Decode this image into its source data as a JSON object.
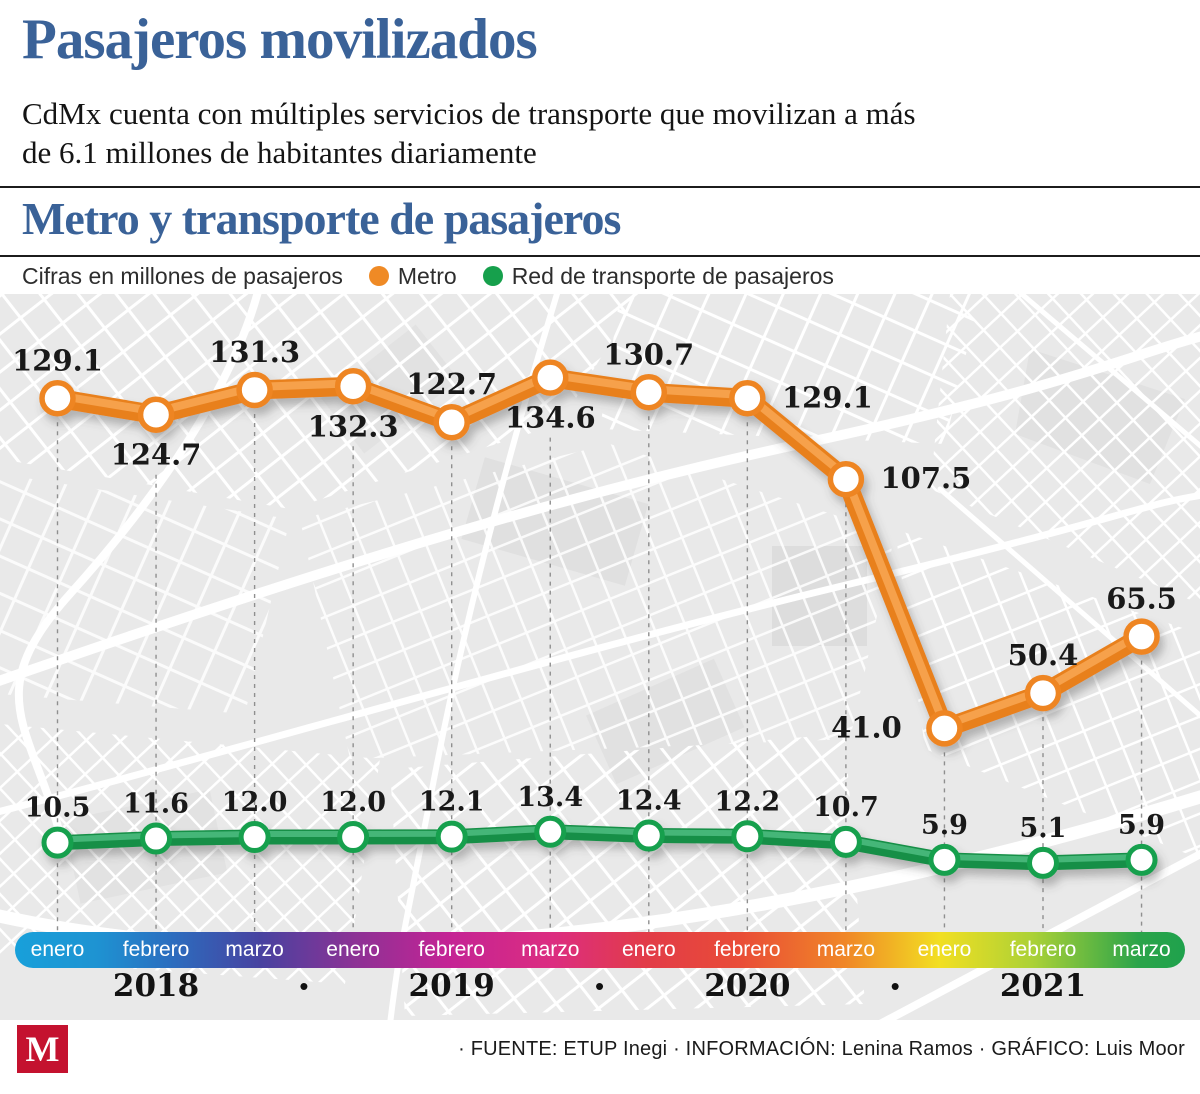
{
  "header": {
    "title": "Pasajeros movilizados",
    "subtitle_lines": [
      "CdMx cuenta con múltiples servicios de transporte que movilizan a más",
      "de 6.1 millones de habitantes diariamente"
    ]
  },
  "section": {
    "title": "Metro y transporte de pasajeros"
  },
  "legend": {
    "note": "Cifras en millones de pasajeros",
    "items": [
      {
        "label": "Metro",
        "color": "#ef8a25"
      },
      {
        "label": "Red de transporte de pasajeros",
        "color": "#16a04c"
      }
    ]
  },
  "chart_data": {
    "type": "line",
    "title": "Metro y transporte de pasajeros",
    "units_note": "Cifras en millones de pasajeros",
    "x": [
      "enero",
      "febrero",
      "marzo",
      "enero",
      "febrero",
      "marzo",
      "enero",
      "febrero",
      "marzo",
      "enero",
      "febrero",
      "marzo"
    ],
    "series": [
      {
        "name": "Metro",
        "color": "#ef8c28",
        "color_dark": "#e8801e",
        "color_light": "#f6a14b",
        "ring": "#ee8522",
        "values": [
          129.1,
          124.7,
          131.3,
          132.3,
          122.7,
          134.6,
          130.7,
          129.1,
          107.5,
          41.0,
          50.4,
          65.5
        ],
        "label_side": [
          "above",
          "below",
          "above",
          "below",
          "above",
          "below",
          "above",
          "right",
          "right",
          "left",
          "above",
          "above"
        ]
      },
      {
        "name": "Red de transporte de pasajeros",
        "color": "#1fa052",
        "color_dark": "#188f47",
        "color_light": "#45b678",
        "ring": "#17a04e",
        "values": [
          10.5,
          11.6,
          12.0,
          12.0,
          12.1,
          13.4,
          12.4,
          12.2,
          10.7,
          5.9,
          5.1,
          5.9
        ],
        "label_side": [
          "above",
          "above",
          "above",
          "above",
          "above",
          "above",
          "above",
          "above",
          "above",
          "above",
          "above",
          "above"
        ]
      }
    ],
    "axis": {
      "years": [
        "2018",
        "2019",
        "2020",
        "2021"
      ],
      "bullet": "•",
      "gradient": [
        {
          "pos": 0,
          "color": "#18a0da"
        },
        {
          "pos": 7,
          "color": "#1e93d2"
        },
        {
          "pos": 13,
          "color": "#2a6fc0"
        },
        {
          "pos": 21,
          "color": "#4842a0"
        },
        {
          "pos": 29,
          "color": "#8c3295"
        },
        {
          "pos": 37,
          "color": "#c42395"
        },
        {
          "pos": 46,
          "color": "#dc2d80"
        },
        {
          "pos": 54,
          "color": "#e23c48"
        },
        {
          "pos": 62,
          "color": "#e94c37"
        },
        {
          "pos": 71,
          "color": "#f08727"
        },
        {
          "pos": 79,
          "color": "#f2df22"
        },
        {
          "pos": 87,
          "color": "#abd136"
        },
        {
          "pos": 96,
          "color": "#2ba44a"
        },
        {
          "pos": 100,
          "color": "#1fa24c"
        }
      ],
      "ylim": [
        0,
        140
      ],
      "grid": "dashed-vertical"
    }
  },
  "footer": {
    "logo_letter": "M",
    "credits": "· FUENTE: ETUP Inegi · INFORMACIÓN: Lenina Ramos · GRÁFICO: Luis Moor"
  }
}
